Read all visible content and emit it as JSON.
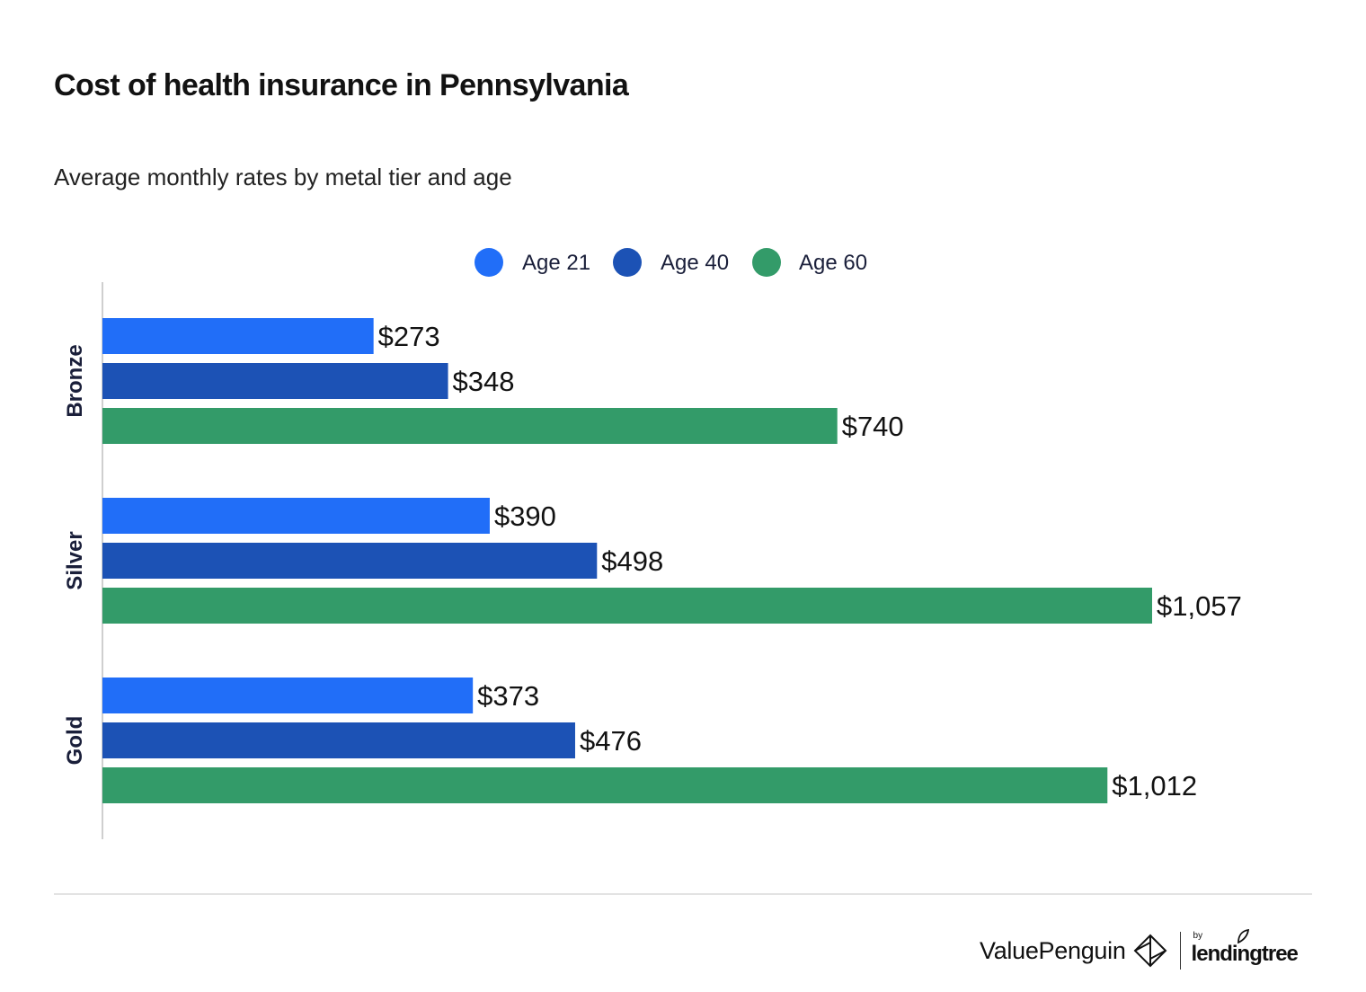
{
  "header": {
    "title": "Cost of health insurance in Pennsylvania",
    "subtitle": "Average monthly rates by metal tier and age"
  },
  "chart_data": {
    "type": "bar",
    "orientation": "horizontal",
    "categories": [
      "Bronze",
      "Silver",
      "Gold"
    ],
    "series": [
      {
        "name": "Age 21",
        "color": "#216ef8",
        "values": [
          273,
          390,
          373
        ],
        "labels": [
          "$273",
          "$390",
          "$373"
        ]
      },
      {
        "name": "Age 40",
        "color": "#1c52b5",
        "values": [
          348,
          498,
          476
        ],
        "labels": [
          "$348",
          "$498",
          "$476"
        ]
      },
      {
        "name": "Age 60",
        "color": "#339b69",
        "values": [
          740,
          1057,
          1012
        ],
        "labels": [
          "$740",
          "$1,057",
          "$1,012"
        ]
      }
    ],
    "xlim": [
      0,
      1057
    ],
    "grid": false,
    "legend_position": "top"
  },
  "footer": {
    "brand": "ValuePenguin",
    "by": "by",
    "partner": "lendingtree",
    "brand_icon": "valuepenguin-logo-icon",
    "partner_icon": "lendingtree-leaf-icon"
  }
}
